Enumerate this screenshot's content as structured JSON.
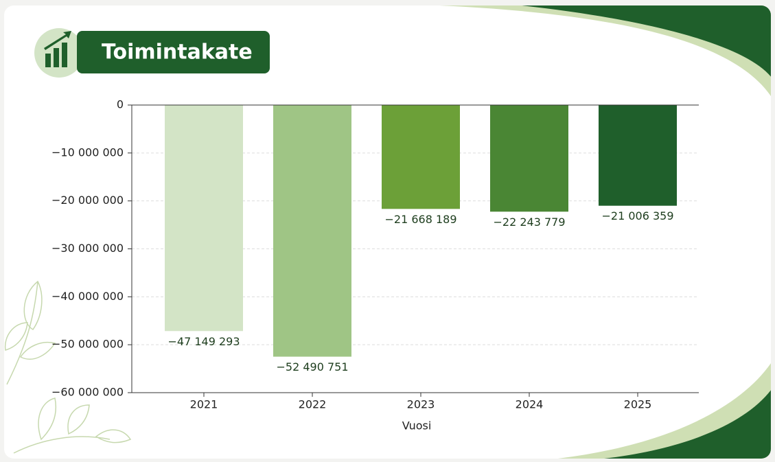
{
  "chart_data": {
    "type": "bar",
    "title": "Toimintakate",
    "x_label": "Vuosi",
    "categories": [
      "2021",
      "2022",
      "2023",
      "2024",
      "2025"
    ],
    "values": [
      -47149293,
      -52490751,
      -21668189,
      -22243779,
      -21006359
    ],
    "value_labels": [
      "−47 149 293",
      "−52 490 751",
      "−21 668 189",
      "−22 243 779",
      "−21 006 359"
    ],
    "colors": [
      "#d3e4c6",
      "#9fc585",
      "#6ca038",
      "#4a8634",
      "#1f5f2b"
    ],
    "ylim": [
      -60000000,
      0
    ],
    "yticks": [
      0,
      {
        "value": -10000000,
        "label": "−10 000 000"
      },
      {
        "value": -20000000,
        "label": "−20 000 000"
      },
      {
        "value": -30000000,
        "label": "−30 000 000"
      },
      {
        "value": -40000000,
        "label": "−40 000 000"
      },
      {
        "value": -50000000,
        "label": "−50 000 000"
      },
      {
        "value": -60000000,
        "label": "−60 000 000"
      }
    ],
    "grid": true
  }
}
